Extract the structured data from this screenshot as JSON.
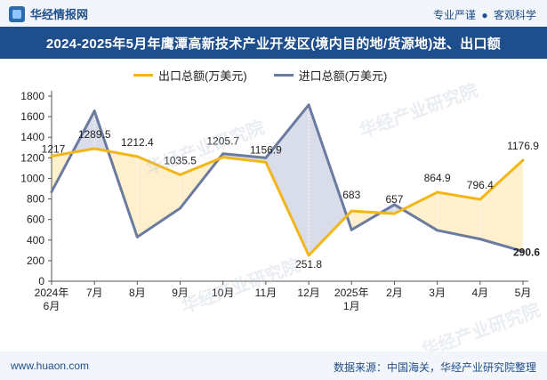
{
  "header": {
    "brand": "华经情报网",
    "slogan_left": "专业严谨",
    "slogan_right": "客观科学"
  },
  "title": "2024-2025年5月年鹰潭高新技术产业开发区(境内目的地/货源地)进、出口额",
  "footer": {
    "site": "www.huaon.com",
    "source": "数据来源：中国海关，华经产业研究院整理"
  },
  "watermark": "华经产业研究院",
  "colors": {
    "export": "#f2b619",
    "import": "#6b7b9f",
    "export_fill": "#fde9b8",
    "import_fill": "#c9cfe0",
    "brand": "#1f4e8c"
  },
  "chart_data": {
    "type": "line",
    "categories": [
      "2024年\n6月",
      "7月",
      "8月",
      "9月",
      "10月",
      "11月",
      "12月",
      "2025年\n1月",
      "2月",
      "3月",
      "4月",
      "5月"
    ],
    "series": [
      {
        "name": "出口总额(万美元)",
        "values": [
          1217,
          1289.5,
          1212.4,
          1035.5,
          1205.7,
          1156.9,
          251.8,
          683,
          657,
          864.9,
          796.4,
          1176.9
        ]
      },
      {
        "name": "进口总额(万美元)",
        "values": [
          870,
          1655,
          430,
          710,
          1240,
          1200,
          1715,
          500,
          745,
          495,
          410,
          290.6
        ]
      }
    ],
    "data_labels": [
      "1217",
      "1289.5",
      "1212.4",
      "1035.5",
      "1205.7",
      "1156.9",
      "251.8",
      "683",
      "657",
      "864.9",
      "796.4",
      "1176.9"
    ],
    "import_last_label": "290.6",
    "yticks": [
      0,
      200,
      400,
      600,
      800,
      1000,
      1200,
      1400,
      1600,
      1800
    ],
    "ylim": [
      0,
      1800
    ],
    "grid": false,
    "legend_position": "top-center"
  }
}
